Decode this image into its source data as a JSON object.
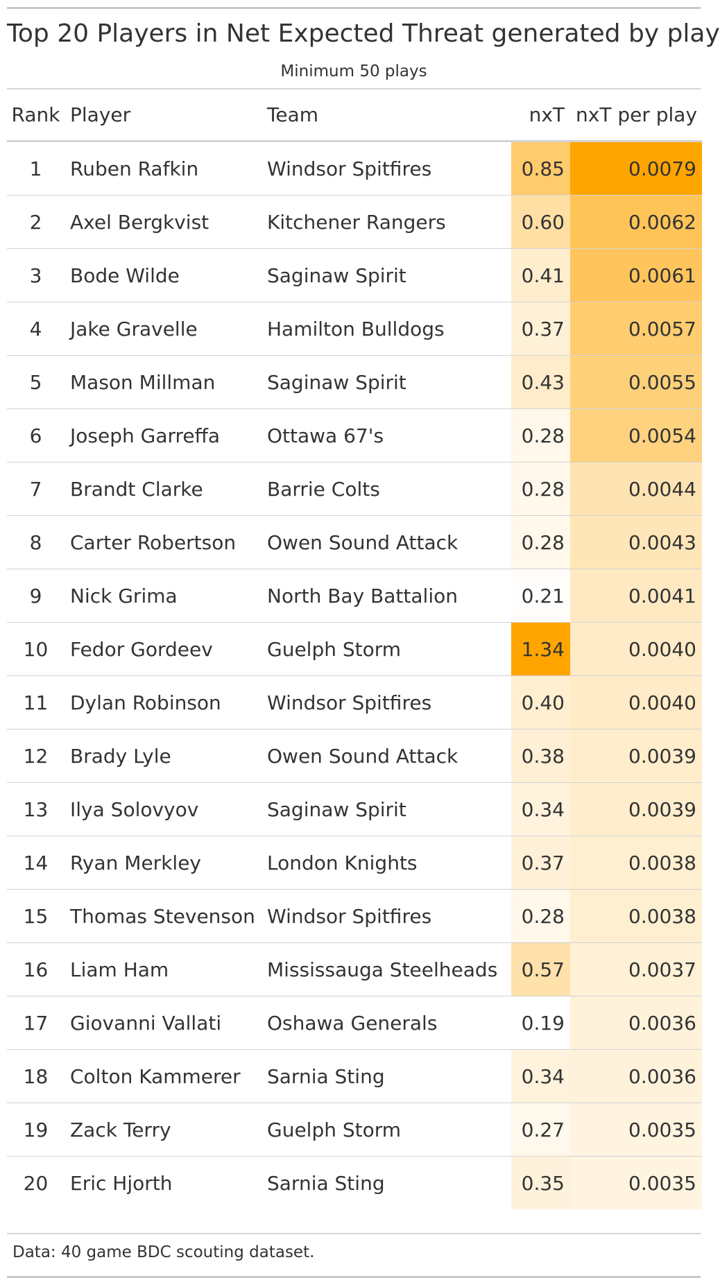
{
  "title": "Top 20 Players in Net Expected Threat generated by play",
  "subtitle": "Minimum 50 plays",
  "source_note": "Data: 40 game BDC scouting dataset.",
  "colors": {
    "low": "#ffffff",
    "high": "#ffa500",
    "text": "#333333",
    "rule": "#d3d3d3"
  },
  "chart_data": {
    "type": "table",
    "columns": [
      "Rank",
      "Player",
      "Team",
      "nxT",
      "nxT per play"
    ],
    "rows": [
      {
        "rank": "1",
        "player": "Ruben Rafkin",
        "team": "Windsor Spitfires",
        "nxt": "0.85",
        "per_play": "0.0079"
      },
      {
        "rank": "2",
        "player": "Axel Bergkvist",
        "team": "Kitchener Rangers",
        "nxt": "0.60",
        "per_play": "0.0062"
      },
      {
        "rank": "3",
        "player": "Bode Wilde",
        "team": "Saginaw Spirit",
        "nxt": "0.41",
        "per_play": "0.0061"
      },
      {
        "rank": "4",
        "player": "Jake Gravelle",
        "team": "Hamilton Bulldogs",
        "nxt": "0.37",
        "per_play": "0.0057"
      },
      {
        "rank": "5",
        "player": "Mason Millman",
        "team": "Saginaw Spirit",
        "nxt": "0.43",
        "per_play": "0.0055"
      },
      {
        "rank": "6",
        "player": "Joseph Garreffa",
        "team": "Ottawa 67's",
        "nxt": "0.28",
        "per_play": "0.0054"
      },
      {
        "rank": "7",
        "player": "Brandt Clarke",
        "team": "Barrie Colts",
        "nxt": "0.28",
        "per_play": "0.0044"
      },
      {
        "rank": "8",
        "player": "Carter Robertson",
        "team": "Owen Sound Attack",
        "nxt": "0.28",
        "per_play": "0.0043"
      },
      {
        "rank": "9",
        "player": "Nick Grima",
        "team": "North Bay Battalion",
        "nxt": "0.21",
        "per_play": "0.0041"
      },
      {
        "rank": "10",
        "player": "Fedor Gordeev",
        "team": "Guelph Storm",
        "nxt": "1.34",
        "per_play": "0.0040"
      },
      {
        "rank": "11",
        "player": "Dylan Robinson",
        "team": "Windsor Spitfires",
        "nxt": "0.40",
        "per_play": "0.0040"
      },
      {
        "rank": "12",
        "player": "Brady Lyle",
        "team": "Owen Sound Attack",
        "nxt": "0.38",
        "per_play": "0.0039"
      },
      {
        "rank": "13",
        "player": "Ilya Solovyov",
        "team": "Saginaw Spirit",
        "nxt": "0.34",
        "per_play": "0.0039"
      },
      {
        "rank": "14",
        "player": "Ryan Merkley",
        "team": "London Knights",
        "nxt": "0.37",
        "per_play": "0.0038"
      },
      {
        "rank": "15",
        "player": "Thomas Stevenson",
        "team": "Windsor Spitfires",
        "nxt": "0.28",
        "per_play": "0.0038"
      },
      {
        "rank": "16",
        "player": "Liam Ham",
        "team": "Mississauga Steelheads",
        "nxt": "0.57",
        "per_play": "0.0037"
      },
      {
        "rank": "17",
        "player": "Giovanni Vallati",
        "team": "Oshawa Generals",
        "nxt": "0.19",
        "per_play": "0.0036"
      },
      {
        "rank": "18",
        "player": "Colton Kammerer",
        "team": "Sarnia Sting",
        "nxt": "0.34",
        "per_play": "0.0036"
      },
      {
        "rank": "19",
        "player": "Zack Terry",
        "team": "Guelph Storm",
        "nxt": "0.27",
        "per_play": "0.0035"
      },
      {
        "rank": "20",
        "player": "Eric Hjorth",
        "team": "Sarnia Sting",
        "nxt": "0.35",
        "per_play": "0.0035"
      }
    ]
  }
}
